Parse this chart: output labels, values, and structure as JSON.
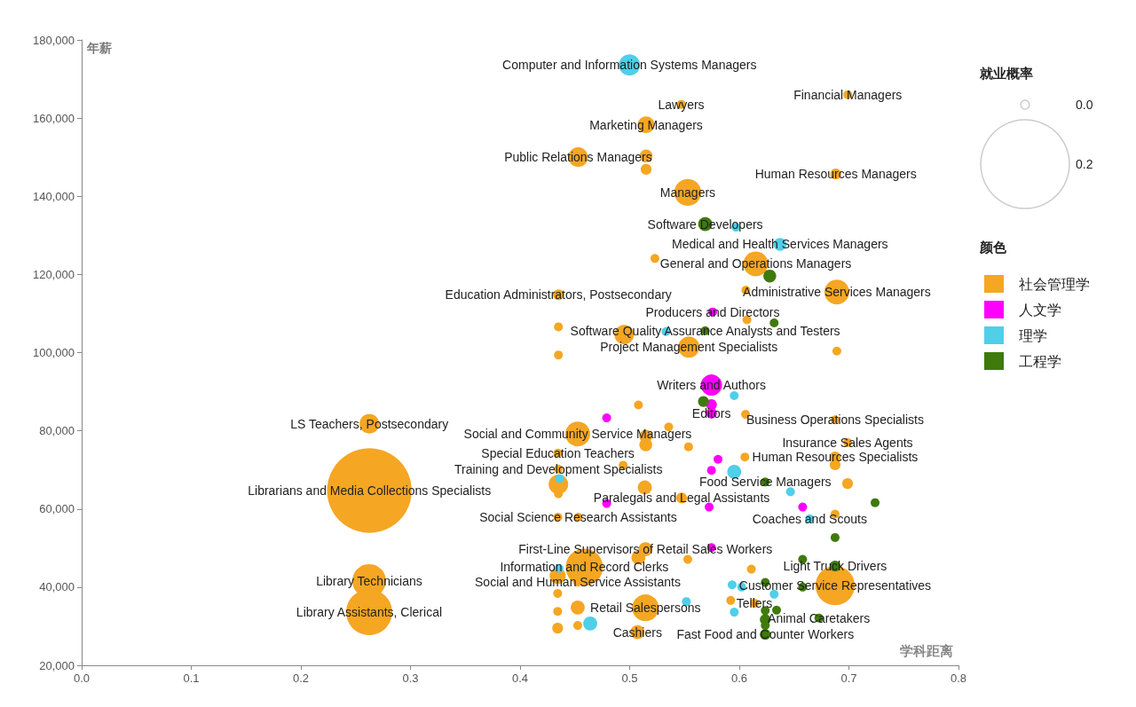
{
  "chart_data": {
    "type": "bubble",
    "xlabel": "学科距离",
    "ylabel": "年薪",
    "legend_title": "颜色",
    "legend": "right",
    "grid": false,
    "xlim": [
      0,
      0.8
    ],
    "xticks": [
      {
        "value": 0,
        "label": "0.0"
      },
      {
        "value": 0.1,
        "label": "0.1"
      },
      {
        "value": 0.2,
        "label": "0.2"
      },
      {
        "value": 0.3,
        "label": "0.3"
      },
      {
        "value": 0.4,
        "label": "0.4"
      },
      {
        "value": 0.5,
        "label": "0.5"
      },
      {
        "value": 0.6,
        "label": "0.6"
      },
      {
        "value": 0.7,
        "label": "0.7"
      },
      {
        "value": 0.8,
        "label": "0.8"
      }
    ],
    "ylim": [
      20000,
      180000
    ],
    "yticks": [
      {
        "value": 20000,
        "label": "20,000"
      },
      {
        "value": 40000,
        "label": "40,000"
      },
      {
        "value": 60000,
        "label": "60,000"
      },
      {
        "value": 80000,
        "label": "80,000"
      },
      {
        "value": 100000,
        "label": "100,000"
      },
      {
        "value": 120000,
        "label": "120,000"
      },
      {
        "value": 140000,
        "label": "140,000"
      },
      {
        "value": 160000,
        "label": "160,000"
      },
      {
        "value": 180000,
        "label": "180,000"
      }
    ],
    "size_legend": [
      {
        "value": 0.002,
        "label": "0.0"
      },
      0.2
    ],
    "series": [
      {
        "name": "社会管理学",
        "color": "#f5a623",
        "x": [
          0.699,
          0.547,
          0.515,
          0.453,
          0.515,
          0.515,
          0.688,
          0.553,
          0.523,
          0.615,
          0.689,
          0.606,
          0.435,
          0.607,
          0.435,
          0.495,
          0.554,
          0.435,
          0.689,
          0.508,
          0.2625,
          0.2625,
          0.4526,
          0.5356,
          0.5147,
          0.5147,
          0.5537,
          0.4345,
          0.494,
          0.435,
          0.435,
          0.435,
          0.5138,
          0.5474,
          0.4345,
          0.453,
          0.6057,
          0.6874,
          0.6988,
          0.6874,
          0.6874,
          0.6051,
          0.6988,
          0.6874,
          0.2623,
          0.2623,
          0.5144,
          0.508,
          0.4586,
          0.4343,
          0.4526,
          0.553,
          0.4343,
          0.4343,
          0.4526,
          0.4343,
          0.4526,
          0.5144,
          0.5071,
          0.611,
          0.6874,
          0.5922,
          0.6138
        ],
        "values": [
          166000,
          163500,
          158300,
          150000,
          150300,
          146900,
          145700,
          141000,
          124100,
          122700,
          115500,
          116000,
          114800,
          108400,
          106600,
          104600,
          101400,
          99400,
          100400,
          86600,
          81800,
          64700,
          79200,
          81000,
          78600,
          76400,
          75900,
          74300,
          71200,
          70200,
          66300,
          63900,
          65500,
          62800,
          57900,
          57900,
          84200,
          82800,
          77000,
          73300,
          71300,
          73300,
          66500,
          58700,
          41600,
          33600,
          49700,
          47600,
          45100,
          42900,
          41300,
          47100,
          38400,
          33800,
          34800,
          29500,
          30200,
          34700,
          28500,
          44600,
          40400,
          36600,
          35900
        ],
        "sizes": [
          0.002,
          0.002,
          0.0072,
          0.0098,
          0.0042,
          0.003,
          0.003,
          0.0183,
          0.002,
          0.0157,
          0.0157,
          0.002,
          0.003,
          0.002,
          0.002,
          0.0098,
          0.0115,
          0.002,
          0.002,
          0.002,
          0.0098,
          0.182,
          0.0157,
          0.002,
          0.0042,
          0.0042,
          0.002,
          0.002,
          0.002,
          0.002,
          0.0098,
          0.002,
          0.005,
          0.003,
          0.002,
          0.002,
          0.002,
          0.002,
          0.002,
          0.003,
          0.003,
          0.002,
          0.003,
          0.002,
          0.0287,
          0.0537,
          0.005,
          0.005,
          0.0352,
          0.0066,
          0.002,
          0.002,
          0.002,
          0.002,
          0.005,
          0.003,
          0.002,
          0.0183,
          0.005,
          0.002,
          0.0391,
          0.002,
          0.002
        ]
      },
      {
        "name": "人文学",
        "color": "#ff00ff",
        "x": [
          0.5757,
          0.5746,
          0.5746,
          0.5746,
          0.479,
          0.479,
          0.5806,
          0.5746,
          0.5725,
          0.6578,
          0.5746
        ],
        "values": [
          110400,
          91700,
          86700,
          84500,
          83300,
          61400,
          72700,
          69900,
          60500,
          60500,
          50100
        ],
        "sizes": [
          0.002,
          0.0115,
          0.003,
          0.003,
          0.002,
          0.002,
          0.002,
          0.002,
          0.002,
          0.002,
          0.002
        ]
      },
      {
        "name": "理学",
        "color": "#4fcfe8",
        "x": [
          0.4998,
          0.5969,
          0.6371,
          0.5331,
          0.5954,
          0.436,
          0.5954,
          0.6467,
          0.6642,
          0.4356,
          0.464,
          0.5517,
          0.5935,
          0.6022,
          0.6318,
          0.5954
        ],
        "values": [
          173600,
          132100,
          127700,
          105400,
          89000,
          67800,
          69500,
          64400,
          57500,
          44800,
          30700,
          36300,
          40600,
          40000,
          38200,
          33600
        ],
        "sizes": [
          0.0115,
          0.002,
          0.0042,
          0.002,
          0.002,
          0.002,
          0.005,
          0.002,
          0.002,
          0.002,
          0.005,
          0.002,
          0.002,
          0.002,
          0.002,
          0.002
        ]
      },
      {
        "name": "工程学",
        "color": "#3f7a0c",
        "x": [
          0.5689,
          0.6278,
          0.6318,
          0.5689,
          0.5673,
          0.6237,
          0.7239,
          0.6874,
          0.6578,
          0.6874,
          0.6578,
          0.6237,
          0.6237,
          0.634,
          0.6237,
          0.6237,
          0.6237,
          0.6726
        ],
        "values": [
          132900,
          119600,
          107600,
          105600,
          87500,
          66900,
          61600,
          52700,
          47100,
          45400,
          40000,
          41200,
          34000,
          34100,
          31700,
          30200,
          27900,
          32100
        ],
        "sizes": [
          0.005,
          0.0042,
          0.002,
          0.002,
          0.003,
          0.002,
          0.002,
          0.002,
          0.002,
          0.003,
          0.002,
          0.002,
          0.002,
          0.002,
          0.003,
          0.002,
          0.003,
          0.002
        ]
      }
    ],
    "annotations": [
      "就业概率",
      {
        "text": "Computer and Information Systems Managers",
        "x": 0.4998,
        "y": 173600
      },
      {
        "text": "Financial Managers",
        "x": 0.699,
        "y": 166000
      },
      {
        "text": "Lawyers",
        "x": 0.547,
        "y": 163500
      },
      {
        "text": "Marketing Managers",
        "x": 0.515,
        "y": 158300
      },
      {
        "text": "Public Relations Managers",
        "x": 0.453,
        "y": 150000
      },
      {
        "text": "Human Resources Managers",
        "x": 0.688,
        "y": 145700
      },
      {
        "text": "Managers",
        "x": 0.553,
        "y": 141000
      },
      {
        "text": "Software Developers",
        "x": 0.5689,
        "y": 132900
      },
      {
        "text": "Medical and Health Services Managers",
        "x": 0.6371,
        "y": 127700
      },
      {
        "text": "General and Operations Managers",
        "x": 0.615,
        "y": 122700
      },
      {
        "text": "Administrative Services Managers",
        "x": 0.689,
        "y": 115500
      },
      {
        "text": "Education Administrators, Postsecondary",
        "x": 0.435,
        "y": 114800
      },
      {
        "text": "Producers and Directors",
        "x": 0.5757,
        "y": 110400
      },
      {
        "text": "Software Quality Assurance Analysts and Testers",
        "x": 0.5689,
        "y": 105600
      },
      {
        "text": "Project Management Specialists",
        "x": 0.554,
        "y": 101400
      },
      {
        "text": "Writers and Authors",
        "x": 0.5746,
        "y": 91700
      },
      {
        "text": "Editors",
        "x": 0.5746,
        "y": 84500
      },
      {
        "text": "Business Operations Specialists",
        "x": 0.6874,
        "y": 82800
      },
      {
        "text": "LS Teachers, Postsecondary",
        "x": 0.2625,
        "y": 81800
      },
      {
        "text": "Social and Community Service Managers",
        "x": 0.4526,
        "y": 79200
      },
      {
        "text": "Insurance Sales Agents",
        "x": 0.6988,
        "y": 77000
      },
      {
        "text": "Human Resources Specialists",
        "x": 0.6874,
        "y": 73300
      },
      {
        "text": "Special Education Teachers",
        "x": 0.4345,
        "y": 74300
      },
      {
        "text": "Training and Development Specialists",
        "x": 0.435,
        "y": 70200
      },
      {
        "text": "Librarians and Media Collections Specialists",
        "x": 0.2625,
        "y": 64700
      },
      {
        "text": "Food Service Managers",
        "x": 0.6237,
        "y": 66900
      },
      {
        "text": "Paralegals and Legal Assistants",
        "x": 0.5474,
        "y": 62800
      },
      {
        "text": "Social Science Research Assistants",
        "x": 0.453,
        "y": 57900
      },
      {
        "text": "Coaches and Scouts",
        "x": 0.6642,
        "y": 57500
      },
      {
        "text": "First-Line Supervisors of Retail Sales Workers",
        "x": 0.5144,
        "y": 49700
      },
      {
        "text": "Information and Record Clerks",
        "x": 0.4586,
        "y": 45100
      },
      {
        "text": "Light Truck Drivers",
        "x": 0.6874,
        "y": 45400
      },
      {
        "text": "Customer Service Representatives",
        "x": 0.6874,
        "y": 40400
      },
      {
        "text": "Social and Human Service Assistants",
        "x": 0.4526,
        "y": 41300
      },
      {
        "text": "Library Technicians",
        "x": 0.2623,
        "y": 41600
      },
      {
        "text": "Library Assistants, Clerical",
        "x": 0.2623,
        "y": 33600
      },
      {
        "text": "Tellers",
        "x": 0.6138,
        "y": 35900
      },
      {
        "text": "Retail Salespersons",
        "x": 0.5144,
        "y": 34700
      },
      {
        "text": "Animal Caretakers",
        "x": 0.6726,
        "y": 32100
      },
      {
        "text": "Cashiers",
        "x": 0.5071,
        "y": 28500
      },
      {
        "text": "Fast Food and Counter Workers",
        "x": 0.6237,
        "y": 27900
      }
    ]
  }
}
